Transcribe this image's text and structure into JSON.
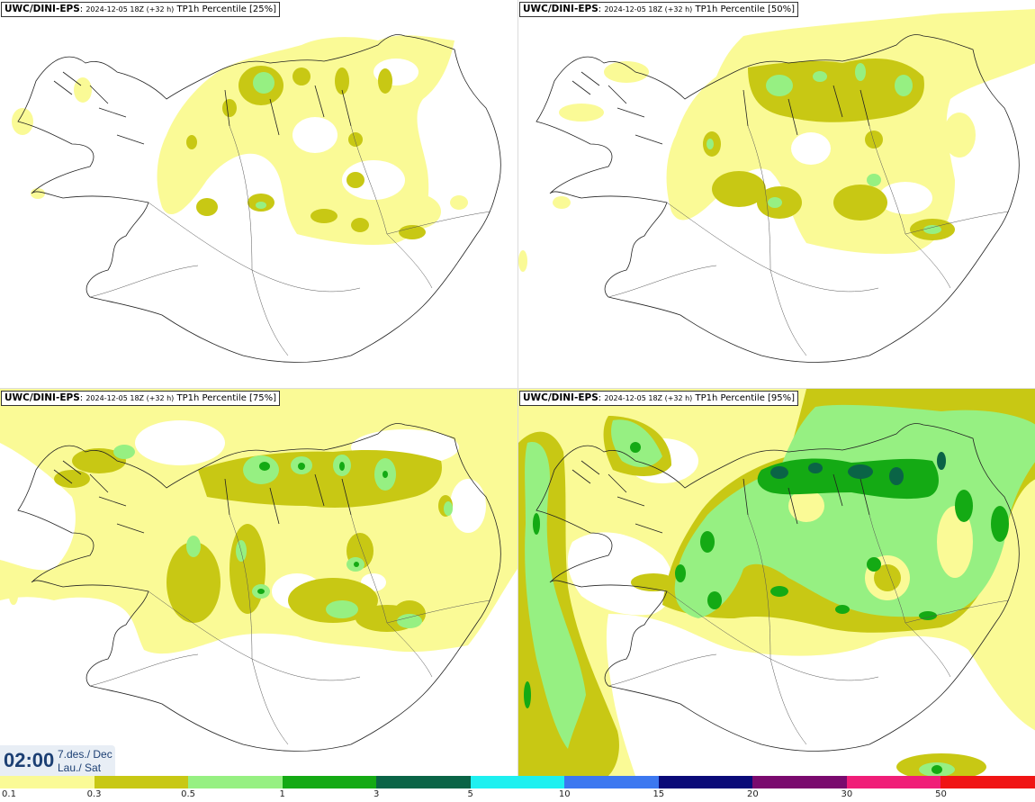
{
  "panels": [
    {
      "source": "UWC/DINI-EPS",
      "run": "2024-12-05 18Z (+32 h)",
      "product": "TP1h Percentile [25%]"
    },
    {
      "source": "UWC/DINI-EPS",
      "run": "2024-12-05 18Z (+32 h)",
      "product": "TP1h Percentile [50%]"
    },
    {
      "source": "UWC/DINI-EPS",
      "run": "2024-12-05 18Z (+32 h)",
      "product": "TP1h Percentile [75%]"
    },
    {
      "source": "UWC/DINI-EPS",
      "run": "2024-12-05 18Z (+32 h)",
      "product": "TP1h Percentile [95%]"
    }
  ],
  "valid_time": {
    "time": "02:00",
    "date": "7.des./ Dec",
    "day": "Lau./ Sat"
  },
  "colorbar": {
    "labels": [
      "0.1",
      "0.3",
      "0.5",
      "1",
      "3",
      "5",
      "10",
      "15",
      "20",
      "30",
      "50"
    ],
    "colors": [
      "#fafa96",
      "#c8c814",
      "#96f082",
      "#14aa14",
      "#0a6446",
      "#1ef0f0",
      "#3c78f0",
      "#0a0a78",
      "#7a0a6e",
      "#f01e78",
      "#f01414"
    ]
  }
}
